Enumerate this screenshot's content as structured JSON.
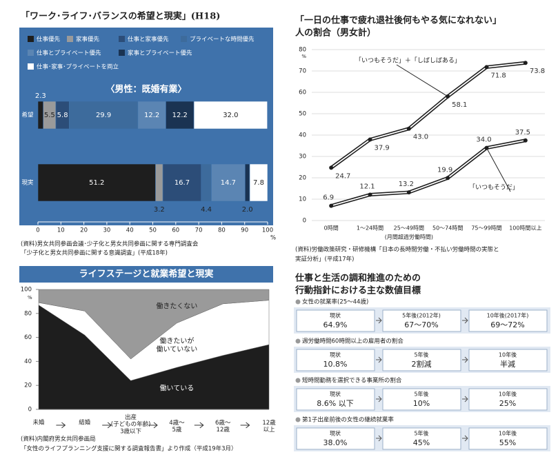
{
  "chart_data": [
    {
      "type": "stacked_bar_h",
      "title": "「ワーク･ライフ･バランスの希望と現実」(H18)",
      "subtitle": "〈男性：既婚有業〉",
      "categories": [
        "希望",
        "現実"
      ],
      "series": [
        {
          "name": "仕事優先",
          "color": "#1e1e1e",
          "values": [
            2.3,
            51.2
          ],
          "value_labels": [
            "2.3",
            "51.2"
          ]
        },
        {
          "name": "家事優先",
          "color": "#9a9a9a",
          "values": [
            5.5,
            3.2
          ],
          "value_labels": [
            "5.5",
            "3.2"
          ]
        },
        {
          "name": "仕事と家事優先",
          "color": "#2c4d78",
          "values": [
            5.8,
            16.7
          ],
          "value_labels": [
            "5.8",
            "16.7"
          ]
        },
        {
          "name": "プライベートな時間優先",
          "color": "#3d6b9c",
          "values": [
            29.9,
            4.4
          ],
          "value_labels": [
            "29.9",
            "4.4"
          ]
        },
        {
          "name": "仕事とプライベート優先",
          "color": "#5b85b3",
          "values": [
            12.2,
            14.7
          ],
          "value_labels": [
            "12.2",
            "14.7"
          ]
        },
        {
          "name": "家事とプライベート優先",
          "color": "#1a3352",
          "values": [
            12.2,
            2.0
          ],
          "value_labels": [
            "12.2",
            "2.0"
          ]
        },
        {
          "name": "仕事･家事･プライベートを両立",
          "color": "#ffffff",
          "values": [
            32.0,
            7.8
          ],
          "value_labels": [
            "32.0",
            "7.8"
          ]
        }
      ],
      "xlim": [
        0,
        100
      ],
      "xticks": [
        0,
        10,
        20,
        30,
        40,
        50,
        60,
        70,
        80,
        90,
        100
      ],
      "x_unit": "%",
      "source": [
        "(資料)男女共同参画会議･少子化と男女共同参画に関する専門調査会",
        "「少子化と男女共同参画に関する意識調査」(平成18年)"
      ]
    },
    {
      "type": "line",
      "title": [
        "「一日の仕事で疲れ退社後何もやる気になれない」",
        "人の割合（男女計）"
      ],
      "categories": [
        "0時間",
        "1～24時間",
        "25～49時間",
        "50～74時間",
        "75～99時間",
        "100時間以上"
      ],
      "xlabel": "(月間超過労働時間)",
      "series": [
        {
          "name": "「いつもそうだ」＋「しばしばある」",
          "color": "#1e1e1e",
          "values": [
            24.7,
            37.9,
            43.0,
            58.1,
            71.8,
            73.8
          ],
          "value_labels": [
            "24.7",
            "37.9",
            "43.0",
            "58.1",
            "71.8",
            "73.8"
          ]
        },
        {
          "name": "「いつもそうだ」",
          "color": "#1e1e1e",
          "values": [
            6.9,
            12.1,
            13.2,
            19.9,
            34.0,
            37.5
          ],
          "value_labels": [
            "6.9",
            "12.1",
            "13.2",
            "19.9",
            "34.0",
            "37.5"
          ]
        }
      ],
      "ylim": [
        0,
        80
      ],
      "yticks": [
        0,
        10,
        20,
        30,
        40,
        50,
        60,
        70,
        80
      ],
      "y_unit": "%",
      "grid": true,
      "source": [
        "(資料)労働政策研究・研修機構「日本の長時間労働・不払い労働時間の実態と",
        "実証分析」(平成17年)"
      ]
    },
    {
      "type": "stacked_area",
      "title": "ライフステージと就業希望と現実",
      "categories": [
        "未婚",
        "結婚",
        "出産\n(子どもの年齢)\n3歳以下",
        "4歳～\n5歳",
        "6歳～\n12歳",
        "12歳\n以上"
      ],
      "series": [
        {
          "name": "働いている",
          "color": "#1e1e1e",
          "values": [
            87,
            62,
            24,
            35,
            45,
            54
          ]
        },
        {
          "name": "働きたいが\n働いていない",
          "color": "#ffffff",
          "values": [
            2,
            20,
            18,
            37,
            43,
            37
          ]
        },
        {
          "name": "働きたくない",
          "color": "#9a9a9a",
          "values": [
            11,
            18,
            58,
            28,
            12,
            9
          ]
        }
      ],
      "ylim": [
        0,
        100
      ],
      "yticks": [
        0,
        20,
        40,
        60,
        80,
        100
      ],
      "y_unit": "%",
      "source": [
        "(資料)内閣府男女共同参画局",
        "「女性のライフプランニング支援に関する調査報告書」より作成（平成19年3月）"
      ]
    }
  ],
  "targets": {
    "title": [
      "仕事と生活の調和推進のための",
      "行動指針における主な数値目標"
    ],
    "items": [
      {
        "heading": "女性の就業率(25～44歳)",
        "boxes": [
          {
            "label": "現状",
            "value": "64.9%"
          },
          {
            "label": "5年後(2012年)",
            "value": "67～70%"
          },
          {
            "label": "10年後(2017年)",
            "value": "69～72%"
          }
        ]
      },
      {
        "heading": "週労働時間60時間以上の雇用者の割合",
        "boxes": [
          {
            "label": "現状",
            "value": "10.8%"
          },
          {
            "label": "5年後",
            "value": "2割減"
          },
          {
            "label": "10年後",
            "value": "半減"
          }
        ]
      },
      {
        "heading": "短時間勤務を選択できる事業所の割合",
        "boxes": [
          {
            "label": "現状",
            "value": "8.6% 以下"
          },
          {
            "label": "5年後",
            "value": "10%"
          },
          {
            "label": "10年後",
            "value": "25%"
          }
        ]
      },
      {
        "heading": "第1子出産前後の女性の継続就業率",
        "boxes": [
          {
            "label": "現状",
            "value": "38.0%"
          },
          {
            "label": "5年後",
            "value": "45%"
          },
          {
            "label": "10年後",
            "value": "55%"
          }
        ]
      }
    ]
  }
}
